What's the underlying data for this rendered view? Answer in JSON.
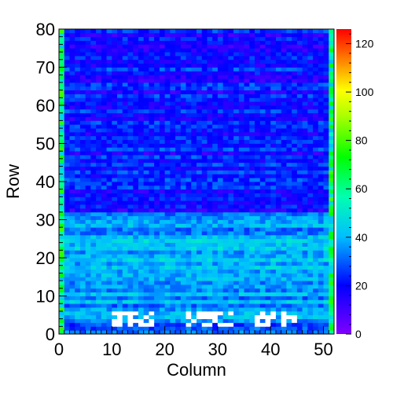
{
  "chart_data": {
    "type": "heatmap",
    "xlabel": "Column",
    "ylabel": "Row",
    "xlim": [
      0,
      52
    ],
    "ylim": [
      0,
      80
    ],
    "zlim": [
      0,
      126
    ],
    "x_ticks": [
      0,
      10,
      20,
      30,
      40,
      50
    ],
    "y_ticks": [
      0,
      10,
      20,
      30,
      40,
      50,
      60,
      70,
      80
    ],
    "z_ticks": [
      0,
      20,
      40,
      60,
      80,
      100,
      120
    ],
    "n_columns": 52,
    "n_rows": 80,
    "colormap": "rainbow (ROOT kRainBow style)",
    "colorbar_stops": [
      "#7f00ff",
      "#0000ff",
      "#00bfff",
      "#00ffb0",
      "#00ff00",
      "#b0ff00",
      "#ffff00",
      "#ff8000",
      "#ff0000"
    ],
    "grid": false,
    "region_levels": [
      {
        "rows": [
          0,
          3
        ],
        "columns": [
          0,
          52
        ],
        "level": 30,
        "description": "bottom border rows"
      },
      {
        "rows": [
          3,
          32
        ],
        "columns": [
          0,
          52
        ],
        "level": 38,
        "description": "lower band, mostly cyan/light blue"
      },
      {
        "rows": [
          32,
          80
        ],
        "columns": [
          0,
          52
        ],
        "level": 20,
        "description": "upper band, mostly blue/violet"
      }
    ],
    "edge_columns": {
      "left_column": 0,
      "right_column": 51,
      "level": 60
    },
    "empty_cells_regions": [
      {
        "columns": [
          10,
          18
        ],
        "rows": [
          2,
          6
        ]
      },
      {
        "columns": [
          24,
          33
        ],
        "rows": [
          2,
          6
        ]
      },
      {
        "columns": [
          37,
          45
        ],
        "rows": [
          2,
          6
        ]
      }
    ]
  }
}
